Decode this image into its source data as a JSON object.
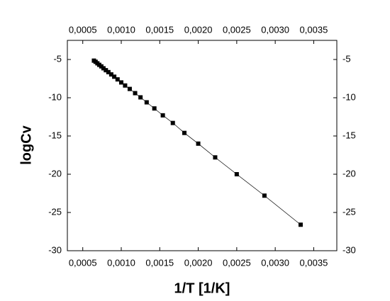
{
  "chart_data": {
    "type": "line",
    "x_label": "1/T [1/K]",
    "y_label": "logCv",
    "x": [
      0.000645,
      0.000667,
      0.00069,
      0.000714,
      0.000741,
      0.000769,
      0.0008,
      0.000833,
      0.00087,
      0.000909,
      0.000952,
      0.001,
      0.00105,
      0.00111,
      0.00118,
      0.00125,
      0.00133,
      0.00143,
      0.00154,
      0.00167,
      0.00182,
      0.002,
      0.00222,
      0.0025,
      0.00286,
      0.00333
    ],
    "series": [
      {
        "color": "#000000",
        "values": [
          -5.15,
          -5.3,
          -5.5,
          -5.7,
          -5.9,
          -6.15,
          -6.4,
          -6.65,
          -6.95,
          -7.25,
          -7.6,
          -8.0,
          -8.4,
          -8.85,
          -9.4,
          -9.95,
          -10.6,
          -11.4,
          -12.3,
          -13.3,
          -14.6,
          -16.0,
          -17.8,
          -20.0,
          -22.8,
          -26.6
        ]
      }
    ],
    "xlim": [
      0.0003,
      0.0038
    ],
    "xticks": [
      {
        "value": 0.0005,
        "label": "0,0005"
      },
      {
        "value": 0.001,
        "label": "0,0010"
      },
      {
        "value": 0.0015,
        "label": "0,0015"
      },
      {
        "value": 0.002,
        "label": "0,0020"
      },
      {
        "value": 0.0025,
        "label": "0,0025"
      },
      {
        "value": 0.003,
        "label": "0,0030"
      },
      {
        "value": 0.0035,
        "label": "0,0035"
      }
    ],
    "ylim": [
      -30,
      -2.5
    ],
    "yticks": [
      -30,
      -25,
      -20,
      -15,
      -10,
      -5
    ]
  }
}
